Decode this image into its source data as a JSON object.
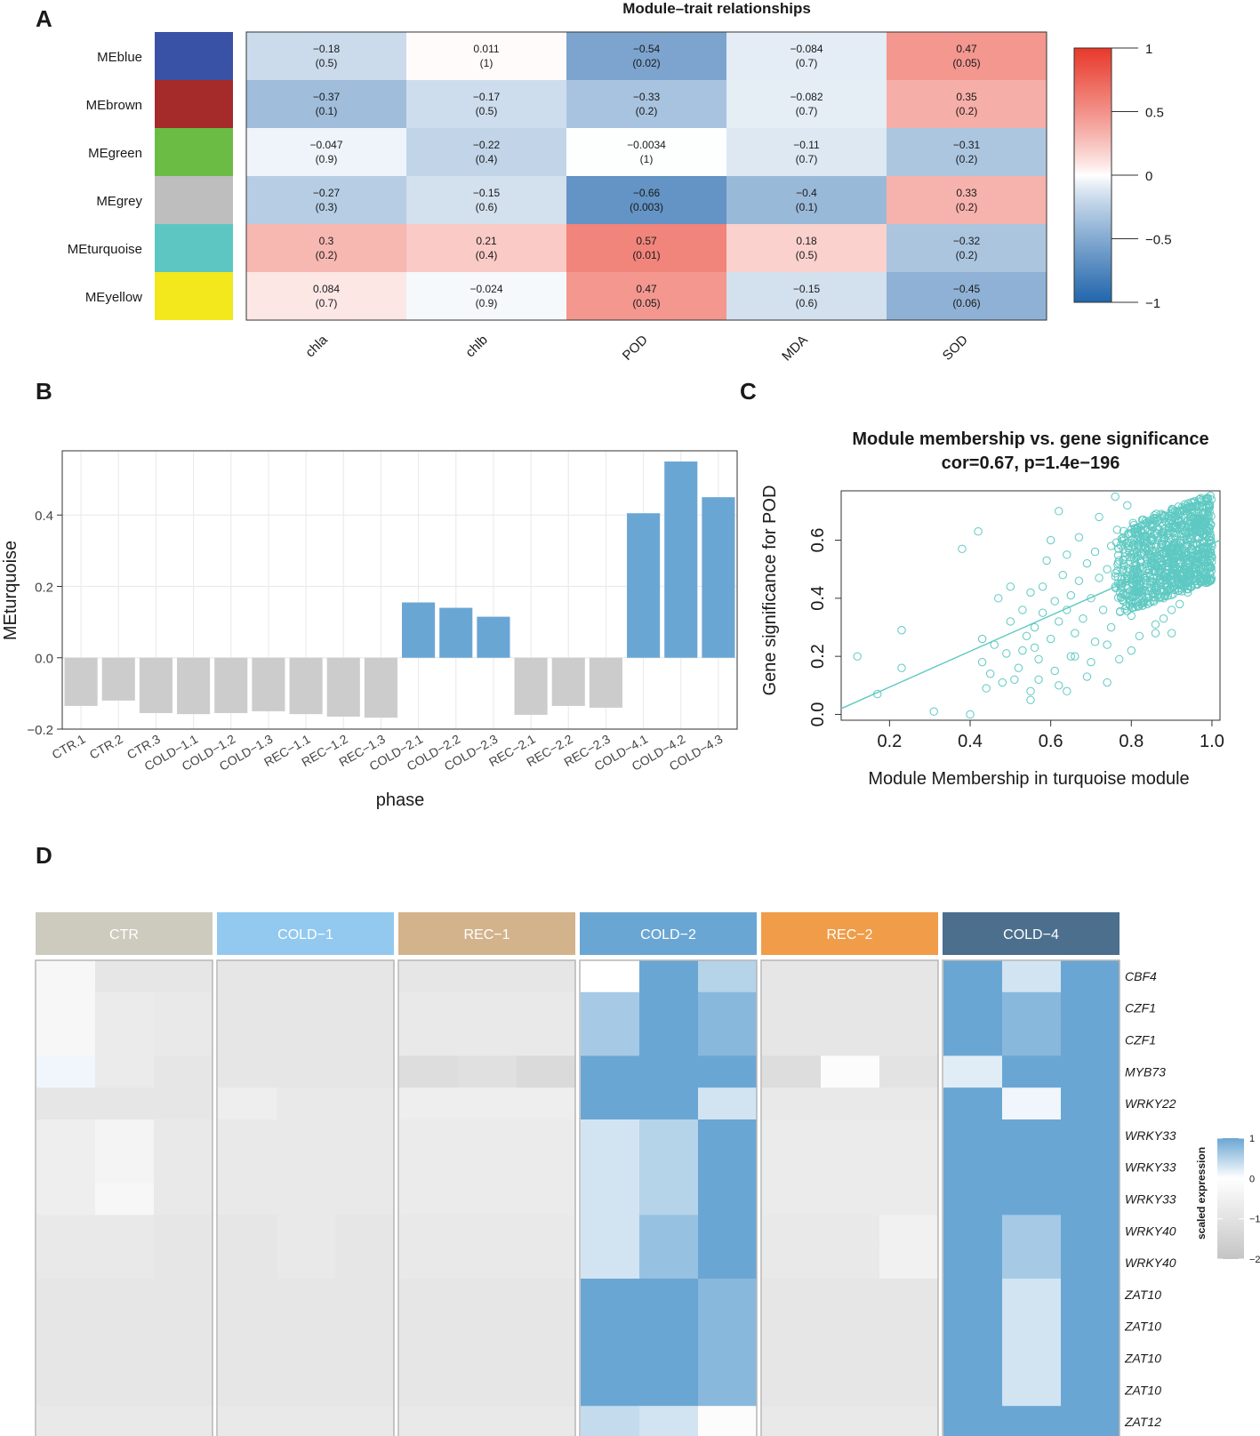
{
  "panel_labels": [
    "A",
    "B",
    "C",
    "D"
  ],
  "colors": {
    "neg": "#2166ac",
    "pos": "#e8392a",
    "mid": "#ffffff",
    "bar_gray": "#cccccc",
    "bar_blue": "#6aa6d3",
    "scatter": "#5ec9c2",
    "heat_low": "#c4c4c4",
    "heat_mid": "#e3e3e3",
    "heat_high": "#6aa6d3"
  },
  "chart_data": [
    {
      "id": "A",
      "type": "heatmap",
      "title": "Module–trait relationships",
      "modules": [
        "MEblue",
        "MEbrown",
        "MEgreen",
        "MEgrey",
        "MEturquoise",
        "MEyellow"
      ],
      "module_colors": [
        "#3a52a6",
        "#a52a2a",
        "#6abc45",
        "#bebebe",
        "#5ec6c2",
        "#f2e81c"
      ],
      "traits": [
        "chla",
        "chlb",
        "POD",
        "MDA",
        "SOD"
      ],
      "values": [
        [
          -0.18,
          0.011,
          -0.54,
          -0.084,
          0.47
        ],
        [
          -0.37,
          -0.17,
          -0.33,
          -0.082,
          0.35
        ],
        [
          -0.047,
          -0.22,
          -0.0034,
          -0.11,
          -0.31
        ],
        [
          -0.27,
          -0.15,
          -0.66,
          -0.4,
          0.33
        ],
        [
          0.3,
          0.21,
          0.57,
          0.18,
          -0.32
        ],
        [
          0.084,
          -0.024,
          0.47,
          -0.15,
          -0.45
        ]
      ],
      "value_labels": [
        [
          "−0.18",
          "0.011",
          "−0.54",
          "−0.084",
          "0.47"
        ],
        [
          "−0.37",
          "−0.17",
          "−0.33",
          "−0.082",
          "0.35"
        ],
        [
          "−0.047",
          "−0.22",
          "−0.0034",
          "−0.11",
          "−0.31"
        ],
        [
          "−0.27",
          "−0.15",
          "−0.66",
          "−0.4",
          "0.33"
        ],
        [
          "0.3",
          "0.21",
          "0.57",
          "0.18",
          "−0.32"
        ],
        [
          "0.084",
          "−0.024",
          "0.47",
          "−0.15",
          "−0.45"
        ]
      ],
      "pvalue_labels": [
        [
          "(0.5)",
          "(1)",
          "(0.02)",
          "(0.7)",
          "(0.05)"
        ],
        [
          "(0.1)",
          "(0.5)",
          "(0.2)",
          "(0.7)",
          "(0.2)"
        ],
        [
          "(0.9)",
          "(0.4)",
          "(1)",
          "(0.7)",
          "(0.2)"
        ],
        [
          "(0.3)",
          "(0.6)",
          "(0.003)",
          "(0.1)",
          "(0.2)"
        ],
        [
          "(0.2)",
          "(0.4)",
          "(0.01)",
          "(0.5)",
          "(0.2)"
        ],
        [
          "(0.7)",
          "(0.9)",
          "(0.05)",
          "(0.6)",
          "(0.06)"
        ]
      ],
      "colorbar_range": [
        -1,
        1
      ],
      "colorbar_ticks": [
        1,
        0.5,
        0,
        -0.5,
        -1
      ],
      "colorbar_tick_labels": [
        "1",
        "0.5",
        "0",
        "−0.5",
        "−1"
      ]
    },
    {
      "id": "B",
      "type": "bar",
      "categories": [
        "CTR.1",
        "CTR.2",
        "CTR.3",
        "COLD−1.1",
        "COLD−1.2",
        "COLD−1.3",
        "REC−1.1",
        "REC−1.2",
        "REC−1.3",
        "COLD−2.1",
        "COLD−2.2",
        "COLD−2.3",
        "REC−2.1",
        "REC−2.2",
        "REC−2.3",
        "COLD−4.1",
        "COLD−4.2",
        "COLD−4.3"
      ],
      "values": [
        -0.135,
        -0.12,
        -0.155,
        -0.158,
        -0.155,
        -0.15,
        -0.158,
        -0.165,
        -0.168,
        0.155,
        0.14,
        0.115,
        -0.16,
        -0.135,
        -0.14,
        0.405,
        0.55,
        0.45
      ],
      "xlabel": "phase",
      "ylabel": "MEturquoise",
      "ylim": [
        -0.2,
        0.58
      ],
      "yticks": [
        -0.2,
        0.0,
        0.2,
        0.4
      ],
      "ytick_labels": [
        "−0.2",
        "0.0",
        "0.2",
        "0.4"
      ]
    },
    {
      "id": "C",
      "type": "scatter",
      "title_line1": "Module membership vs. gene significance",
      "title_line2": "cor=0.67, p=1.4e−196",
      "xlabel": "Module Membership in turquoise module",
      "ylabel": "Gene significance for  POD",
      "xlim": [
        0.08,
        1.02
      ],
      "ylim": [
        -0.02,
        0.77
      ],
      "xticks": [
        0.2,
        0.4,
        0.6,
        0.8,
        1.0
      ],
      "xtick_labels": [
        "0.2",
        "0.4",
        "0.6",
        "0.8",
        "1.0"
      ],
      "yticks": [
        0.0,
        0.2,
        0.4,
        0.6
      ],
      "ytick_labels": [
        "0.0",
        "0.2",
        "0.4",
        "0.6"
      ],
      "fit_line": {
        "x": [
          0.08,
          1.02
        ],
        "y": [
          0.02,
          0.6
        ]
      },
      "points": [
        [
          0.12,
          0.2
        ],
        [
          0.17,
          0.07
        ],
        [
          0.23,
          0.16
        ],
        [
          0.23,
          0.29
        ],
        [
          0.31,
          0.01
        ],
        [
          0.38,
          0.57
        ],
        [
          0.4,
          0.0
        ],
        [
          0.42,
          0.63
        ],
        [
          0.43,
          0.18
        ],
        [
          0.43,
          0.26
        ],
        [
          0.44,
          0.09
        ],
        [
          0.45,
          0.14
        ],
        [
          0.46,
          0.24
        ],
        [
          0.47,
          0.4
        ],
        [
          0.48,
          0.11
        ],
        [
          0.49,
          0.21
        ],
        [
          0.5,
          0.32
        ],
        [
          0.5,
          0.44
        ],
        [
          0.51,
          0.12
        ],
        [
          0.52,
          0.16
        ],
        [
          0.53,
          0.36
        ],
        [
          0.54,
          0.27
        ],
        [
          0.55,
          0.05
        ],
        [
          0.55,
          0.08
        ],
        [
          0.55,
          0.42
        ],
        [
          0.56,
          0.23
        ],
        [
          0.56,
          0.3
        ],
        [
          0.57,
          0.19
        ],
        [
          0.58,
          0.35
        ],
        [
          0.58,
          0.44
        ],
        [
          0.59,
          0.53
        ],
        [
          0.6,
          0.6
        ],
        [
          0.6,
          0.26
        ],
        [
          0.61,
          0.39
        ],
        [
          0.61,
          0.15
        ],
        [
          0.62,
          0.7
        ],
        [
          0.62,
          0.32
        ],
        [
          0.63,
          0.48
        ],
        [
          0.64,
          0.36
        ],
        [
          0.64,
          0.55
        ],
        [
          0.65,
          0.2
        ],
        [
          0.65,
          0.41
        ],
        [
          0.66,
          0.28
        ],
        [
          0.67,
          0.46
        ],
        [
          0.67,
          0.61
        ],
        [
          0.68,
          0.33
        ],
        [
          0.69,
          0.52
        ],
        [
          0.69,
          0.13
        ],
        [
          0.7,
          0.4
        ],
        [
          0.71,
          0.56
        ],
        [
          0.71,
          0.25
        ],
        [
          0.72,
          0.47
        ],
        [
          0.72,
          0.68
        ],
        [
          0.73,
          0.36
        ],
        [
          0.74,
          0.5
        ],
        [
          0.74,
          0.11
        ],
        [
          0.75,
          0.58
        ],
        [
          0.75,
          0.3
        ],
        [
          0.76,
          0.44
        ],
        [
          0.76,
          0.75
        ],
        [
          0.77,
          0.53
        ],
        [
          0.77,
          0.19
        ],
        [
          0.78,
          0.39
        ],
        [
          0.78,
          0.61
        ],
        [
          0.79,
          0.47
        ],
        [
          0.79,
          0.72
        ],
        [
          0.8,
          0.55
        ],
        [
          0.8,
          0.34
        ],
        [
          0.81,
          0.42
        ],
        [
          0.81,
          0.64
        ],
        [
          0.82,
          0.5
        ],
        [
          0.82,
          0.27
        ],
        [
          0.83,
          0.58
        ],
        [
          0.83,
          0.45
        ],
        [
          0.84,
          0.38
        ],
        [
          0.84,
          0.66
        ],
        [
          0.85,
          0.52
        ],
        [
          0.85,
          0.6
        ],
        [
          0.86,
          0.44
        ],
        [
          0.86,
          0.31
        ],
        [
          0.87,
          0.56
        ],
        [
          0.87,
          0.49
        ],
        [
          0.88,
          0.63
        ],
        [
          0.88,
          0.4
        ],
        [
          0.89,
          0.53
        ],
        [
          0.89,
          0.47
        ],
        [
          0.9,
          0.58
        ],
        [
          0.9,
          0.36
        ],
        [
          0.91,
          0.51
        ],
        [
          0.91,
          0.65
        ],
        [
          0.92,
          0.45
        ],
        [
          0.92,
          0.55
        ],
        [
          0.93,
          0.6
        ],
        [
          0.93,
          0.49
        ],
        [
          0.94,
          0.52
        ],
        [
          0.94,
          0.42
        ],
        [
          0.95,
          0.57
        ],
        [
          0.95,
          0.62
        ],
        [
          0.96,
          0.5
        ],
        [
          0.96,
          0.46
        ],
        [
          0.97,
          0.55
        ],
        [
          0.97,
          0.59
        ],
        [
          0.98,
          0.53
        ],
        [
          0.98,
          0.48
        ],
        [
          0.99,
          0.56
        ],
        [
          0.99,
          0.51
        ],
        [
          1.0,
          0.58
        ],
        [
          1.0,
          0.54
        ],
        [
          0.86,
          0.28
        ],
        [
          0.9,
          0.28
        ],
        [
          0.88,
          0.33
        ],
        [
          0.92,
          0.38
        ],
        [
          0.7,
          0.18
        ],
        [
          0.66,
          0.2
        ],
        [
          0.74,
          0.24
        ],
        [
          0.8,
          0.22
        ],
        [
          0.62,
          0.1
        ],
        [
          0.64,
          0.08
        ],
        [
          0.57,
          0.12
        ],
        [
          0.53,
          0.22
        ]
      ]
    },
    {
      "id": "D",
      "type": "heatmap",
      "groups": [
        "CTR",
        "COLD−1",
        "REC−1",
        "COLD−2",
        "REC−2",
        "COLD−4"
      ],
      "group_colors": [
        "#cdcbbd",
        "#93c9ef",
        "#d3b38c",
        "#6aa6d3",
        "#f09c48",
        "#4c6f8e"
      ],
      "genes": [
        "CBF4",
        "CZF1",
        "CZF1",
        "MYB73",
        "WRKY22",
        "WRKY33",
        "WRKY33",
        "WRKY33",
        "WRKY40",
        "WRKY40",
        "ZAT10",
        "ZAT10",
        "ZAT10",
        "ZAT10",
        "ZAT12"
      ],
      "matrix": [
        [
          -0.3,
          -0.9,
          -0.9,
          -0.9,
          -0.9,
          -0.9,
          -0.9,
          -0.9,
          -0.9,
          0.0,
          1.0,
          0.5,
          -0.9,
          -0.9,
          -0.9,
          1.0,
          0.3,
          1.0
        ],
        [
          -0.3,
          -0.7,
          -0.8,
          -0.9,
          -0.9,
          -0.9,
          -0.8,
          -0.8,
          -0.8,
          0.6,
          1.0,
          0.8,
          -0.9,
          -0.9,
          -0.9,
          1.0,
          0.8,
          1.0
        ],
        [
          -0.3,
          -0.7,
          -0.8,
          -0.9,
          -0.9,
          -0.9,
          -0.8,
          -0.8,
          -0.8,
          0.6,
          1.0,
          0.8,
          -0.9,
          -0.9,
          -0.9,
          1.0,
          0.8,
          1.0
        ],
        [
          0.1,
          -0.7,
          -0.9,
          -0.9,
          -0.9,
          -0.9,
          -1.2,
          -1.1,
          -1.3,
          1.0,
          1.0,
          1.0,
          -1.2,
          -0.1,
          -1.0,
          0.2,
          1.0,
          1.0
        ],
        [
          -0.9,
          -0.9,
          -0.9,
          -0.6,
          -0.8,
          -0.8,
          -0.6,
          -0.6,
          -0.6,
          1.0,
          1.0,
          0.3,
          -0.8,
          -0.8,
          -0.8,
          1.0,
          0.1,
          1.0
        ],
        [
          -0.6,
          -0.4,
          -0.8,
          -0.8,
          -0.8,
          -0.8,
          -0.7,
          -0.7,
          -0.7,
          0.3,
          0.5,
          1.0,
          -0.7,
          -0.7,
          -0.7,
          1.0,
          1.0,
          1.0
        ],
        [
          -0.6,
          -0.4,
          -0.8,
          -0.8,
          -0.8,
          -0.8,
          -0.7,
          -0.7,
          -0.7,
          0.3,
          0.5,
          1.0,
          -0.7,
          -0.7,
          -0.7,
          1.0,
          1.0,
          1.0
        ],
        [
          -0.6,
          -0.3,
          -0.8,
          -0.8,
          -0.8,
          -0.8,
          -0.7,
          -0.7,
          -0.7,
          0.3,
          0.5,
          1.0,
          -0.7,
          -0.7,
          -0.7,
          1.0,
          1.0,
          1.0
        ],
        [
          -0.8,
          -0.8,
          -0.9,
          -0.9,
          -0.8,
          -0.9,
          -0.8,
          -0.8,
          -0.8,
          0.3,
          0.7,
          1.0,
          -0.8,
          -0.8,
          -0.5,
          1.0,
          0.6,
          1.0
        ],
        [
          -0.8,
          -0.8,
          -0.9,
          -0.9,
          -0.8,
          -0.9,
          -0.8,
          -0.8,
          -0.8,
          0.3,
          0.7,
          1.0,
          -0.8,
          -0.8,
          -0.5,
          1.0,
          0.6,
          1.0
        ],
        [
          -0.9,
          -0.9,
          -0.9,
          -0.9,
          -0.9,
          -0.9,
          -0.9,
          -0.9,
          -0.9,
          1.0,
          1.0,
          0.8,
          -0.9,
          -0.9,
          -0.9,
          1.0,
          0.3,
          1.0
        ],
        [
          -0.9,
          -0.9,
          -0.9,
          -0.9,
          -0.9,
          -0.9,
          -0.9,
          -0.9,
          -0.9,
          1.0,
          1.0,
          0.8,
          -0.9,
          -0.9,
          -0.9,
          1.0,
          0.3,
          1.0
        ],
        [
          -0.9,
          -0.9,
          -0.9,
          -0.9,
          -0.9,
          -0.9,
          -0.9,
          -0.9,
          -0.9,
          1.0,
          1.0,
          0.8,
          -0.9,
          -0.9,
          -0.9,
          1.0,
          0.3,
          1.0
        ],
        [
          -0.9,
          -0.9,
          -0.9,
          -0.9,
          -0.9,
          -0.9,
          -0.9,
          -0.9,
          -0.9,
          1.0,
          1.0,
          0.8,
          -0.9,
          -0.9,
          -0.9,
          1.0,
          0.3,
          1.0
        ],
        [
          -0.8,
          -0.8,
          -0.8,
          -0.8,
          -0.8,
          -0.8,
          -0.8,
          -0.8,
          -0.8,
          0.4,
          0.3,
          -0.1,
          -0.8,
          -0.8,
          -0.8,
          1.0,
          1.0,
          1.0
        ]
      ],
      "legend_title": "scaled expression",
      "legend_ticks": [
        "1",
        "0",
        "−1",
        "−2"
      ]
    }
  ]
}
